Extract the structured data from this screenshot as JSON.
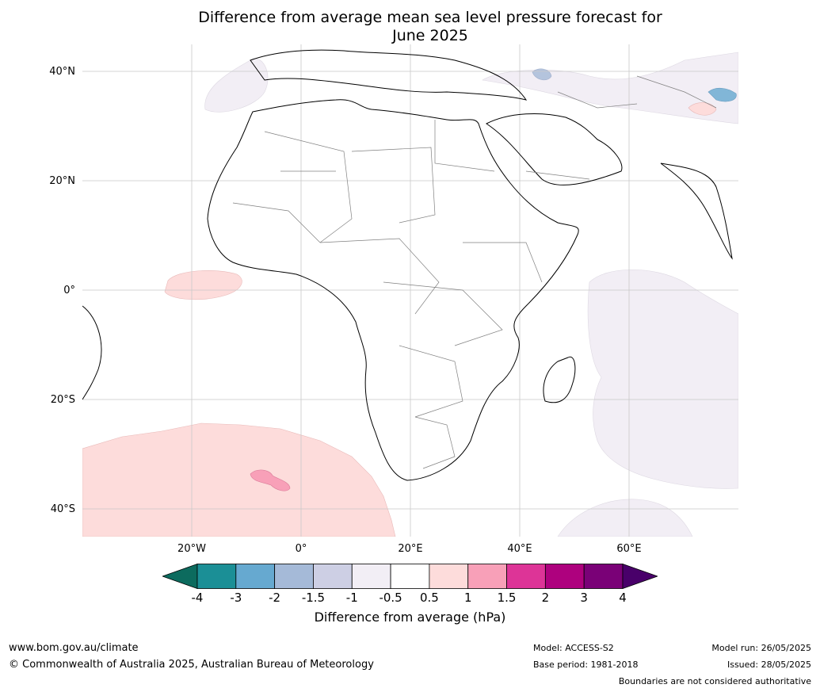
{
  "title_line1": "Difference from average mean sea level pressure forecast for",
  "title_line2": "June 2025",
  "map": {
    "lat_labels": [
      "40°N",
      "20°N",
      "0°",
      "20°S",
      "40°S"
    ],
    "lat_values": [
      40,
      20,
      0,
      -20,
      -40
    ],
    "lon_labels": [
      "20°W",
      "0°",
      "20°E",
      "40°E",
      "60°E"
    ],
    "lon_values": [
      -20,
      0,
      20,
      40,
      60
    ],
    "extent": {
      "lon_min": -40,
      "lon_max": 80,
      "lat_min": -45,
      "lat_max": 45
    }
  },
  "colorbar": {
    "ticks": [
      "-4",
      "-3",
      "-2",
      "-1.5",
      "-1",
      "-0.5",
      "0.5",
      "1",
      "1.5",
      "2",
      "3",
      "4"
    ],
    "colors": [
      "#1b8f96",
      "#66a9d0",
      "#a5bad8",
      "#cdcfe4",
      "#f2eef5",
      "#ffffff",
      "#fddcdb",
      "#f8a0b8",
      "#dd3497",
      "#ae017e",
      "#7a0177"
    ],
    "under_color": "#0c6b5e",
    "over_color": "#49006a",
    "label": "Difference from average (hPa)"
  },
  "footer": {
    "url": "www.bom.gov.au/climate",
    "copyright": "© Commonwealth of Australia 2025, Australian Bureau of Meteorology",
    "model": "Model: ACCESS-S2",
    "base_period": "Base period: 1981-2018",
    "model_run": "Model run: 26/05/2025",
    "issued": "Issued: 28/05/2025",
    "disclaimer": "Boundaries are not considered authoritative"
  }
}
